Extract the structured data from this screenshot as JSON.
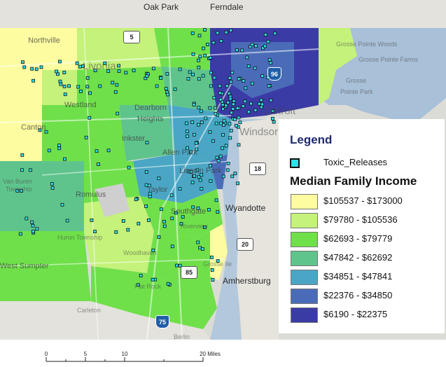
{
  "map": {
    "place_labels": [
      {
        "id": "oak-park",
        "text": "Oak Park"
      },
      {
        "id": "ferndale",
        "text": "Ferndale"
      },
      {
        "id": "northville",
        "text": "Northville"
      },
      {
        "id": "livonia",
        "text": "Livonia"
      },
      {
        "id": "grosse-pointe-woods",
        "text": "Grosse Pointe Woods"
      },
      {
        "id": "grosse-pointe-farms",
        "text": "Grosse Pointe Farms"
      },
      {
        "id": "grosse",
        "text": "Grosse"
      },
      {
        "id": "pointe-park",
        "text": "Pointe Park"
      },
      {
        "id": "westland",
        "text": "Westland"
      },
      {
        "id": "dearborn",
        "text": "Dearborn"
      },
      {
        "id": "heights",
        "text": "Heights"
      },
      {
        "id": "canton",
        "text": "Canton"
      },
      {
        "id": "detroit",
        "text": "Detroit"
      },
      {
        "id": "windsor",
        "text": "Windsor"
      },
      {
        "id": "inkster",
        "text": "Inkster"
      },
      {
        "id": "allen-park",
        "text": "Allen Park"
      },
      {
        "id": "lincoln-park",
        "text": "Lincoln Park"
      },
      {
        "id": "van-buren",
        "text": "Van Buren"
      },
      {
        "id": "township",
        "text": "Township"
      },
      {
        "id": "romulus",
        "text": "Romulus"
      },
      {
        "id": "taylor",
        "text": "Taylor"
      },
      {
        "id": "southgate",
        "text": "Southgate"
      },
      {
        "id": "wyandotte",
        "text": "Wyandotte"
      },
      {
        "id": "riverview",
        "text": "Riverview"
      },
      {
        "id": "huron-township",
        "text": "Huron Township"
      },
      {
        "id": "woodhaven",
        "text": "Woodhaven"
      },
      {
        "id": "west-sumpter",
        "text": "West Sumpter"
      },
      {
        "id": "grosse-ile",
        "text": "Grosse Ile"
      },
      {
        "id": "amherstburg",
        "text": "Amherstburg"
      },
      {
        "id": "flat-rock",
        "text": "Flat Rock"
      },
      {
        "id": "carleton",
        "text": "Carleton"
      },
      {
        "id": "berlin",
        "text": "Berlin"
      }
    ],
    "road_shields": [
      {
        "id": "i96",
        "text": "96"
      },
      {
        "id": "r5",
        "text": "5"
      },
      {
        "id": "r18",
        "text": "18"
      },
      {
        "id": "r20",
        "text": "20"
      },
      {
        "id": "r85",
        "text": "85"
      },
      {
        "id": "i75",
        "text": "75"
      }
    ]
  },
  "legend": {
    "title": "Legend",
    "toxic_releases_label": "Toxic_Releases",
    "toxic_color": "#2ee0e8",
    "income_title": "Median Family Income",
    "classes": [
      {
        "label": "$105537 - $173000",
        "color": "#fdfca0"
      },
      {
        "label": "$79780 - $105536",
        "color": "#c4f27a"
      },
      {
        "label": "$62693 - $79779",
        "color": "#6fe04a"
      },
      {
        "label": "$47842 - $62692",
        "color": "#5fc48c"
      },
      {
        "label": "$34851 - $47841",
        "color": "#4aa6c4"
      },
      {
        "label": "$22376 - $34850",
        "color": "#4a6cb8"
      },
      {
        "label": "$6190 - $22375",
        "color": "#3b3ba6"
      }
    ]
  },
  "scale_bar": {
    "ticks": [
      "0",
      "5",
      "10",
      "20 Miles"
    ],
    "tick_miles": [
      0,
      5,
      10,
      20
    ]
  }
}
